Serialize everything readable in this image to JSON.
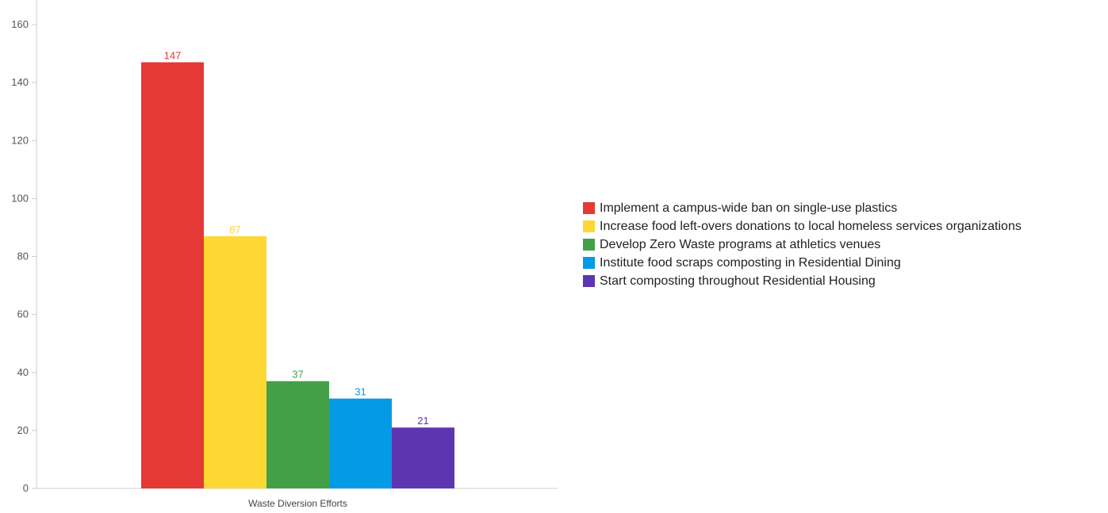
{
  "chart_data": {
    "type": "bar",
    "title": "",
    "xlabel": "",
    "ylabel": "",
    "categories": [
      "Waste Diversion Efforts"
    ],
    "ylim": [
      0,
      160
    ],
    "yticks": [
      0,
      20,
      40,
      60,
      80,
      100,
      120,
      140,
      160
    ],
    "grid": false,
    "legend_position": "right",
    "series": [
      {
        "name": "Implement a campus-wide ban on single-use plastics",
        "values": [
          147
        ],
        "color": "#e53935"
      },
      {
        "name": "Increase food left-overs donations to local homeless services organizations",
        "values": [
          87
        ],
        "color": "#fdd835"
      },
      {
        "name": "Develop Zero Waste programs at athletics venues",
        "values": [
          37
        ],
        "color": "#43a047"
      },
      {
        "name": "Institute food scraps composting in Residential Dining",
        "values": [
          31
        ],
        "color": "#039be5"
      },
      {
        "name": "Start composting throughout Residential Housing",
        "values": [
          21
        ],
        "color": "#5e35b1"
      }
    ]
  }
}
